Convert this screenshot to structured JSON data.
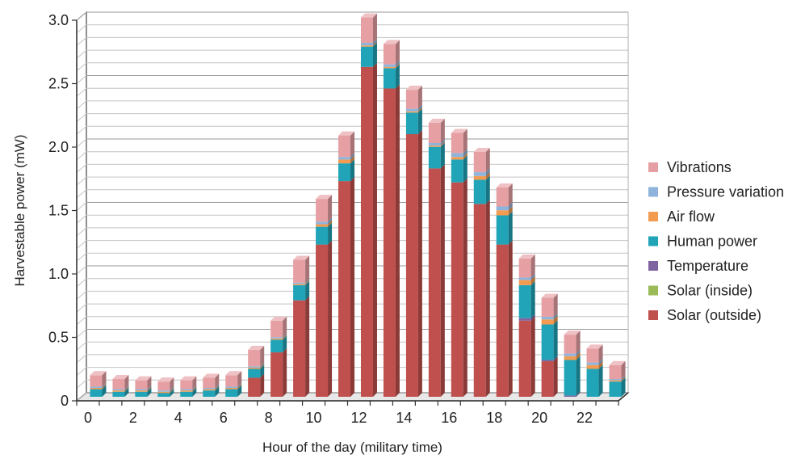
{
  "chart_data": {
    "type": "bar",
    "stacked": true,
    "title": "",
    "xlabel": "Hour of the day (military time)",
    "ylabel": "Harvestable power (mW)",
    "ylim": [
      0,
      3.0
    ],
    "y_ticks": [
      "0",
      "0.5",
      "1.0",
      "1.5",
      "2.0",
      "2.5",
      "3.0"
    ],
    "y_tick_values": [
      0,
      0.5,
      1.0,
      1.5,
      2.0,
      2.5,
      3.0
    ],
    "x_ticks": [
      "0",
      "2",
      "4",
      "6",
      "8",
      "10",
      "12",
      "14",
      "16",
      "18",
      "20",
      "22"
    ],
    "x_tick_hours": [
      0,
      2,
      4,
      6,
      8,
      10,
      12,
      14,
      16,
      18,
      20,
      22
    ],
    "categories": [
      0,
      1,
      2,
      3,
      4,
      5,
      6,
      7,
      8,
      9,
      10,
      11,
      12,
      13,
      14,
      15,
      16,
      17,
      18,
      19,
      20,
      21,
      22,
      23
    ],
    "grid": true,
    "legend_position": "right",
    "series": [
      {
        "name": "Solar (outside)",
        "color": "#c0504d",
        "values": [
          0,
          0,
          0,
          0,
          0,
          0,
          0,
          0.15,
          0.35,
          0.76,
          1.2,
          1.7,
          2.6,
          2.43,
          2.07,
          1.8,
          1.69,
          1.52,
          1.2,
          0.6,
          0.28,
          0,
          0,
          0
        ]
      },
      {
        "name": "Solar (inside)",
        "color": "#9bbb59",
        "values": [
          0,
          0,
          0,
          0,
          0,
          0,
          0,
          0,
          0,
          0,
          0,
          0,
          0,
          0,
          0,
          0,
          0,
          0,
          0,
          0,
          0,
          0,
          0,
          0
        ]
      },
      {
        "name": "Temperature",
        "color": "#8064a2",
        "values": [
          0,
          0,
          0,
          0,
          0,
          0,
          0,
          0,
          0,
          0,
          0,
          0,
          0,
          0,
          0,
          0,
          0,
          0,
          0,
          0.02,
          0.01,
          0.01,
          0,
          0
        ]
      },
      {
        "name": "Human power",
        "color": "#21a4b8",
        "values": [
          0.06,
          0.04,
          0.04,
          0.03,
          0.04,
          0.05,
          0.06,
          0.07,
          0.1,
          0.12,
          0.14,
          0.14,
          0.16,
          0.16,
          0.17,
          0.17,
          0.18,
          0.19,
          0.23,
          0.26,
          0.28,
          0.28,
          0.22,
          0.12
        ]
      },
      {
        "name": "Air flow",
        "color": "#f39c51",
        "values": [
          0.01,
          0.01,
          0.01,
          0.01,
          0.01,
          0.01,
          0.01,
          0.01,
          0.01,
          0.01,
          0.02,
          0.03,
          0.01,
          0.01,
          0.01,
          0.01,
          0.02,
          0.03,
          0.04,
          0.04,
          0.04,
          0.03,
          0.03,
          0.01
        ]
      },
      {
        "name": "Pressure variation",
        "color": "#8fb4dc",
        "values": [
          0.01,
          0.01,
          0.01,
          0.01,
          0.01,
          0.01,
          0.01,
          0.01,
          0.01,
          0.01,
          0.02,
          0.02,
          0.02,
          0.02,
          0.02,
          0.02,
          0.03,
          0.03,
          0.03,
          0.02,
          0.02,
          0.02,
          0.02,
          0.01
        ]
      },
      {
        "name": "Vibrations",
        "color": "#e6a0a4",
        "values": [
          0.09,
          0.08,
          0.07,
          0.07,
          0.07,
          0.08,
          0.09,
          0.13,
          0.13,
          0.18,
          0.18,
          0.17,
          0.2,
          0.16,
          0.15,
          0.16,
          0.16,
          0.16,
          0.15,
          0.15,
          0.15,
          0.15,
          0.11,
          0.11
        ]
      }
    ]
  },
  "legend": {
    "items": [
      "Vibrations",
      "Pressure variation",
      "Air flow",
      "Human power",
      "Temperature",
      "Solar (inside)",
      "Solar (outside)"
    ]
  }
}
